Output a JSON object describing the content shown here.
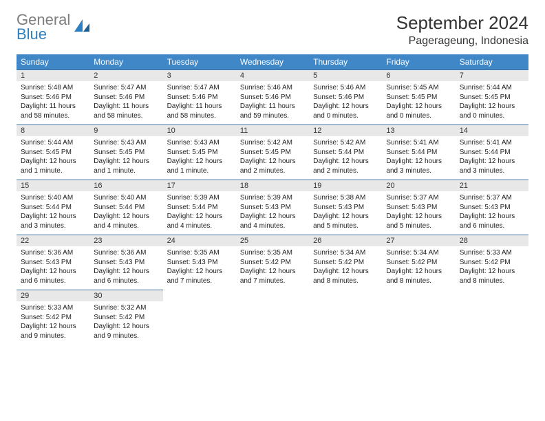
{
  "brand": {
    "word1": "General",
    "word2": "Blue"
  },
  "title": "September 2024",
  "location": "Pagerageung, Indonesia",
  "colors": {
    "header_bg": "#3f87c6",
    "header_text": "#ffffff",
    "daynum_bg": "#e8e8e8",
    "rule": "#3f6e9c",
    "logo_gray": "#7d7d7d",
    "logo_blue": "#2d7fc1"
  },
  "weekday_labels": [
    "Sunday",
    "Monday",
    "Tuesday",
    "Wednesday",
    "Thursday",
    "Friday",
    "Saturday"
  ],
  "days": [
    {
      "n": 1,
      "sunrise": "5:48 AM",
      "sunset": "5:46 PM",
      "daylight": "11 hours and 58 minutes."
    },
    {
      "n": 2,
      "sunrise": "5:47 AM",
      "sunset": "5:46 PM",
      "daylight": "11 hours and 58 minutes."
    },
    {
      "n": 3,
      "sunrise": "5:47 AM",
      "sunset": "5:46 PM",
      "daylight": "11 hours and 58 minutes."
    },
    {
      "n": 4,
      "sunrise": "5:46 AM",
      "sunset": "5:46 PM",
      "daylight": "11 hours and 59 minutes."
    },
    {
      "n": 5,
      "sunrise": "5:46 AM",
      "sunset": "5:46 PM",
      "daylight": "12 hours and 0 minutes."
    },
    {
      "n": 6,
      "sunrise": "5:45 AM",
      "sunset": "5:45 PM",
      "daylight": "12 hours and 0 minutes."
    },
    {
      "n": 7,
      "sunrise": "5:44 AM",
      "sunset": "5:45 PM",
      "daylight": "12 hours and 0 minutes."
    },
    {
      "n": 8,
      "sunrise": "5:44 AM",
      "sunset": "5:45 PM",
      "daylight": "12 hours and 1 minute."
    },
    {
      "n": 9,
      "sunrise": "5:43 AM",
      "sunset": "5:45 PM",
      "daylight": "12 hours and 1 minute."
    },
    {
      "n": 10,
      "sunrise": "5:43 AM",
      "sunset": "5:45 PM",
      "daylight": "12 hours and 1 minute."
    },
    {
      "n": 11,
      "sunrise": "5:42 AM",
      "sunset": "5:45 PM",
      "daylight": "12 hours and 2 minutes."
    },
    {
      "n": 12,
      "sunrise": "5:42 AM",
      "sunset": "5:44 PM",
      "daylight": "12 hours and 2 minutes."
    },
    {
      "n": 13,
      "sunrise": "5:41 AM",
      "sunset": "5:44 PM",
      "daylight": "12 hours and 3 minutes."
    },
    {
      "n": 14,
      "sunrise": "5:41 AM",
      "sunset": "5:44 PM",
      "daylight": "12 hours and 3 minutes."
    },
    {
      "n": 15,
      "sunrise": "5:40 AM",
      "sunset": "5:44 PM",
      "daylight": "12 hours and 3 minutes."
    },
    {
      "n": 16,
      "sunrise": "5:40 AM",
      "sunset": "5:44 PM",
      "daylight": "12 hours and 4 minutes."
    },
    {
      "n": 17,
      "sunrise": "5:39 AM",
      "sunset": "5:44 PM",
      "daylight": "12 hours and 4 minutes."
    },
    {
      "n": 18,
      "sunrise": "5:39 AM",
      "sunset": "5:43 PM",
      "daylight": "12 hours and 4 minutes."
    },
    {
      "n": 19,
      "sunrise": "5:38 AM",
      "sunset": "5:43 PM",
      "daylight": "12 hours and 5 minutes."
    },
    {
      "n": 20,
      "sunrise": "5:37 AM",
      "sunset": "5:43 PM",
      "daylight": "12 hours and 5 minutes."
    },
    {
      "n": 21,
      "sunrise": "5:37 AM",
      "sunset": "5:43 PM",
      "daylight": "12 hours and 6 minutes."
    },
    {
      "n": 22,
      "sunrise": "5:36 AM",
      "sunset": "5:43 PM",
      "daylight": "12 hours and 6 minutes."
    },
    {
      "n": 23,
      "sunrise": "5:36 AM",
      "sunset": "5:43 PM",
      "daylight": "12 hours and 6 minutes."
    },
    {
      "n": 24,
      "sunrise": "5:35 AM",
      "sunset": "5:43 PM",
      "daylight": "12 hours and 7 minutes."
    },
    {
      "n": 25,
      "sunrise": "5:35 AM",
      "sunset": "5:42 PM",
      "daylight": "12 hours and 7 minutes."
    },
    {
      "n": 26,
      "sunrise": "5:34 AM",
      "sunset": "5:42 PM",
      "daylight": "12 hours and 8 minutes."
    },
    {
      "n": 27,
      "sunrise": "5:34 AM",
      "sunset": "5:42 PM",
      "daylight": "12 hours and 8 minutes."
    },
    {
      "n": 28,
      "sunrise": "5:33 AM",
      "sunset": "5:42 PM",
      "daylight": "12 hours and 8 minutes."
    },
    {
      "n": 29,
      "sunrise": "5:33 AM",
      "sunset": "5:42 PM",
      "daylight": "12 hours and 9 minutes."
    },
    {
      "n": 30,
      "sunrise": "5:32 AM",
      "sunset": "5:42 PM",
      "daylight": "12 hours and 9 minutes."
    }
  ],
  "labels": {
    "sunrise": "Sunrise:",
    "sunset": "Sunset:",
    "daylight": "Daylight:"
  },
  "layout": {
    "first_weekday_index": 0,
    "total_cells": 35
  }
}
